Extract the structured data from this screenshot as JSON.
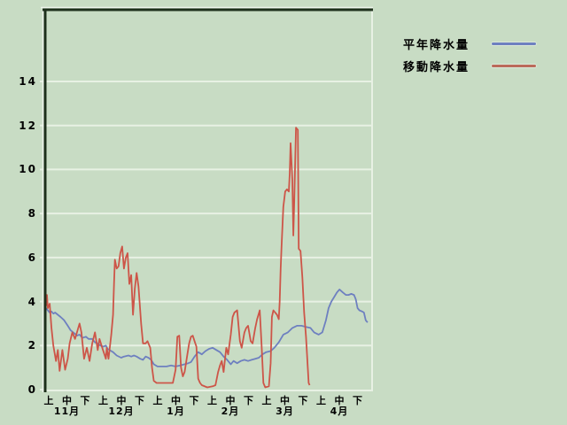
{
  "colors": {
    "background": "#c8dcc4",
    "gridline": "#e8f1e4",
    "axis_line": "#e8f1e4",
    "border_dark": "#1e301c",
    "border_highlight": "#eef5ec",
    "text": "#000000"
  },
  "legend": {
    "items": [
      {
        "label": "平年降水量",
        "color": "#6e80c0"
      },
      {
        "label": "移動降水量",
        "color": "#bb6a5a"
      }
    ]
  },
  "chart_data": {
    "type": "line",
    "title": "",
    "xlabel": "",
    "ylabel": "",
    "grid": true,
    "legend_position": "top-right",
    "x_axis": {
      "unit": "days from start of 11月 (each month split into 上/中/下 periods)",
      "span_days": 180,
      "period_labels": [
        "上",
        "中",
        "下",
        "上",
        "中",
        "下",
        "上",
        "中",
        "下",
        "上",
        "中",
        "下",
        "上",
        "中",
        "下",
        "上",
        "中",
        "下"
      ],
      "month_labels": [
        "11月",
        "12月",
        "1月",
        "2月",
        "3月",
        "4月"
      ]
    },
    "y_axis": {
      "ticks": [
        0,
        2,
        4,
        6,
        8,
        10,
        12,
        14
      ],
      "tick_labels": [
        "0",
        "2",
        "4",
        "6",
        "8",
        "10",
        "12",
        "14"
      ],
      "ylim": [
        0,
        17.2
      ]
    },
    "series": [
      {
        "name": "平年降水量",
        "color": "#6e80c0",
        "points": [
          [
            0,
            3.7
          ],
          [
            1,
            3.6
          ],
          [
            2,
            3.5
          ],
          [
            3,
            3.55
          ],
          [
            4,
            3.45
          ],
          [
            5,
            3.5
          ],
          [
            6.5,
            3.4
          ],
          [
            8,
            3.3
          ],
          [
            10,
            3.15
          ],
          [
            12,
            2.9
          ],
          [
            13.5,
            2.7
          ],
          [
            15,
            2.6
          ],
          [
            17,
            2.45
          ],
          [
            18.5,
            2.5
          ],
          [
            20,
            2.35
          ],
          [
            22,
            2.4
          ],
          [
            23.5,
            2.3
          ],
          [
            25.5,
            2.3
          ],
          [
            27,
            2.15
          ],
          [
            28.5,
            2.1
          ],
          [
            30,
            2.0
          ],
          [
            31.5,
            1.95
          ],
          [
            33,
            2.0
          ],
          [
            34,
            1.85
          ],
          [
            36,
            1.75
          ],
          [
            37,
            1.7
          ],
          [
            39,
            1.55
          ],
          [
            41.5,
            1.45
          ],
          [
            43,
            1.5
          ],
          [
            45.5,
            1.55
          ],
          [
            47,
            1.5
          ],
          [
            48.5,
            1.55
          ],
          [
            50,
            1.5
          ],
          [
            52,
            1.4
          ],
          [
            53.5,
            1.35
          ],
          [
            55,
            1.5
          ],
          [
            56.5,
            1.45
          ],
          [
            58,
            1.35
          ],
          [
            59.5,
            1.15
          ],
          [
            61.5,
            1.05
          ],
          [
            64,
            1.05
          ],
          [
            66.5,
            1.05
          ],
          [
            69,
            1.1
          ],
          [
            71.5,
            1.05
          ],
          [
            74,
            1.1
          ],
          [
            76.5,
            1.15
          ],
          [
            78.5,
            1.2
          ],
          [
            80,
            1.25
          ],
          [
            82,
            1.5
          ],
          [
            84,
            1.7
          ],
          [
            86,
            1.6
          ],
          [
            88,
            1.75
          ],
          [
            90,
            1.85
          ],
          [
            92,
            1.9
          ],
          [
            94,
            1.8
          ],
          [
            96,
            1.7
          ],
          [
            98,
            1.5
          ],
          [
            100,
            1.35
          ],
          [
            102,
            1.15
          ],
          [
            103.5,
            1.3
          ],
          [
            105.5,
            1.2
          ],
          [
            107.5,
            1.3
          ],
          [
            109.5,
            1.35
          ],
          [
            111.5,
            1.3
          ],
          [
            113.5,
            1.35
          ],
          [
            115.5,
            1.4
          ],
          [
            117.5,
            1.45
          ],
          [
            119.5,
            1.6
          ],
          [
            121.5,
            1.7
          ],
          [
            124,
            1.75
          ],
          [
            126,
            1.9
          ],
          [
            128.5,
            2.15
          ],
          [
            131,
            2.5
          ],
          [
            133.5,
            2.6
          ],
          [
            136,
            2.8
          ],
          [
            138.5,
            2.9
          ],
          [
            141,
            2.9
          ],
          [
            143.5,
            2.85
          ],
          [
            146,
            2.8
          ],
          [
            148,
            2.6
          ],
          [
            150.5,
            2.5
          ],
          [
            152.5,
            2.6
          ],
          [
            154.5,
            3.15
          ],
          [
            156,
            3.7
          ],
          [
            157.5,
            4.0
          ],
          [
            159,
            4.2
          ],
          [
            160.5,
            4.4
          ],
          [
            162,
            4.55
          ],
          [
            164,
            4.4
          ],
          [
            165.5,
            4.3
          ],
          [
            167,
            4.3
          ],
          [
            168.5,
            4.35
          ],
          [
            170,
            4.3
          ],
          [
            171,
            4.1
          ],
          [
            172,
            3.7
          ],
          [
            173,
            3.6
          ],
          [
            174.5,
            3.55
          ],
          [
            175.5,
            3.5
          ],
          [
            176.5,
            3.15
          ],
          [
            177.5,
            3.05
          ]
        ]
      },
      {
        "name": "移動降水量",
        "color": "#cd5548",
        "points": [
          [
            0,
            3.8
          ],
          [
            0.5,
            4.3
          ],
          [
            1,
            3.7
          ],
          [
            2,
            3.9
          ],
          [
            3,
            2.8
          ],
          [
            4,
            2.0
          ],
          [
            5.5,
            1.3
          ],
          [
            6.5,
            1.8
          ],
          [
            7.5,
            0.85
          ],
          [
            9,
            1.8
          ],
          [
            10.5,
            0.9
          ],
          [
            12,
            1.4
          ],
          [
            13,
            2.1
          ],
          [
            14.5,
            2.6
          ],
          [
            16,
            2.3
          ],
          [
            18.5,
            3.0
          ],
          [
            19.5,
            2.6
          ],
          [
            21,
            1.4
          ],
          [
            22.5,
            1.9
          ],
          [
            24,
            1.3
          ],
          [
            25.5,
            2.1
          ],
          [
            27,
            2.6
          ],
          [
            28.5,
            1.8
          ],
          [
            29.5,
            2.3
          ],
          [
            31,
            1.9
          ],
          [
            33,
            1.4
          ],
          [
            33.5,
            1.9
          ],
          [
            34.5,
            1.4
          ],
          [
            36,
            2.5
          ],
          [
            37,
            3.4
          ],
          [
            37.5,
            4.8
          ],
          [
            38,
            5.9
          ],
          [
            39,
            5.5
          ],
          [
            40,
            5.6
          ],
          [
            41,
            6.2
          ],
          [
            42,
            6.5
          ],
          [
            43,
            5.5
          ],
          [
            44,
            6.0
          ],
          [
            45,
            6.2
          ],
          [
            46,
            4.8
          ],
          [
            47,
            5.2
          ],
          [
            48,
            3.4
          ],
          [
            49,
            4.6
          ],
          [
            50,
            5.3
          ],
          [
            51,
            4.7
          ],
          [
            52.5,
            3.0
          ],
          [
            53.5,
            2.1
          ],
          [
            55,
            2.1
          ],
          [
            56,
            2.2
          ],
          [
            57.5,
            1.9
          ],
          [
            58.5,
            1.0
          ],
          [
            59.5,
            0.4
          ],
          [
            61,
            0.3
          ],
          [
            65.5,
            0.3
          ],
          [
            70,
            0.3
          ],
          [
            71.5,
            0.9
          ],
          [
            72.5,
            2.4
          ],
          [
            73.5,
            2.45
          ],
          [
            74.5,
            1.0
          ],
          [
            75.5,
            0.6
          ],
          [
            76.5,
            0.8
          ],
          [
            78,
            1.6
          ],
          [
            79,
            2.1
          ],
          [
            80,
            2.4
          ],
          [
            81,
            2.45
          ],
          [
            82,
            2.2
          ],
          [
            83,
            1.95
          ],
          [
            84,
            0.5
          ],
          [
            85,
            0.3
          ],
          [
            86,
            0.2
          ],
          [
            89,
            0.1
          ],
          [
            92,
            0.15
          ],
          [
            93.5,
            0.2
          ],
          [
            95,
            0.8
          ],
          [
            96,
            1.1
          ],
          [
            97,
            1.3
          ],
          [
            98,
            0.8
          ],
          [
            99.5,
            1.9
          ],
          [
            100.5,
            1.6
          ],
          [
            101.5,
            2.2
          ],
          [
            102,
            2.5
          ],
          [
            103,
            3.3
          ],
          [
            104,
            3.5
          ],
          [
            105.5,
            3.6
          ],
          [
            107,
            2.2
          ],
          [
            108,
            1.9
          ],
          [
            109.5,
            2.6
          ],
          [
            110.5,
            2.8
          ],
          [
            111.5,
            2.9
          ],
          [
            113,
            2.2
          ],
          [
            114,
            2.1
          ],
          [
            115.5,
            2.8
          ],
          [
            116.5,
            3.2
          ],
          [
            118,
            3.6
          ],
          [
            119,
            2.0
          ],
          [
            120,
            0.3
          ],
          [
            121,
            0.1
          ],
          [
            123,
            0.15
          ],
          [
            124,
            1.2
          ],
          [
            124.7,
            3.3
          ],
          [
            125.5,
            3.6
          ],
          [
            126.5,
            3.5
          ],
          [
            127.5,
            3.4
          ],
          [
            128.5,
            3.2
          ],
          [
            129,
            4.0
          ],
          [
            129.5,
            5.5
          ],
          [
            130,
            6.5
          ],
          [
            131,
            8.3
          ],
          [
            132,
            9.0
          ],
          [
            133,
            9.1
          ],
          [
            134,
            9.0
          ],
          [
            134.5,
            9.8
          ],
          [
            135,
            11.2
          ],
          [
            136,
            9.5
          ],
          [
            136.5,
            7.0
          ],
          [
            137,
            8.5
          ],
          [
            138,
            11.9
          ],
          [
            139,
            11.8
          ],
          [
            139.5,
            6.4
          ],
          [
            140.5,
            6.3
          ],
          [
            141.5,
            5.1
          ],
          [
            142.5,
            3.5
          ],
          [
            143.5,
            2.4
          ],
          [
            144.5,
            1.0
          ],
          [
            145,
            0.3
          ],
          [
            145.5,
            0.2
          ]
        ]
      }
    ]
  }
}
